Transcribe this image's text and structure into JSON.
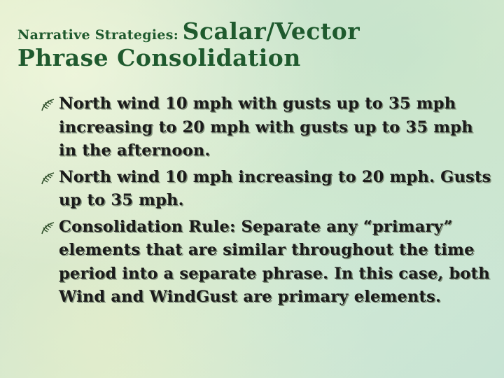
{
  "title": {
    "prefix": "Narrative Strategies:",
    "main_first": "Scalar/Vector",
    "main_second": "Phrase Consolidation"
  },
  "bullets": [
    {
      "icon": "leaf-icon",
      "text": "North wind 10 mph with gusts up to 35 mph increasing to 20 mph with gusts up to 35 mph in the afternoon."
    },
    {
      "icon": "leaf-icon",
      "text": "North wind 10 mph increasing to 20 mph.  Gusts up to 35 mph."
    },
    {
      "icon": "leaf-icon",
      "text": "Consolidation Rule: Separate any “primary” elements that are similar throughout the time period into a separate phrase. In this case, both Wind and WindGust are primary elements."
    }
  ],
  "colors": {
    "title": "#1f5a2e",
    "body_text": "#1a1a1a",
    "bullet_icon": "#2f4f2a"
  }
}
